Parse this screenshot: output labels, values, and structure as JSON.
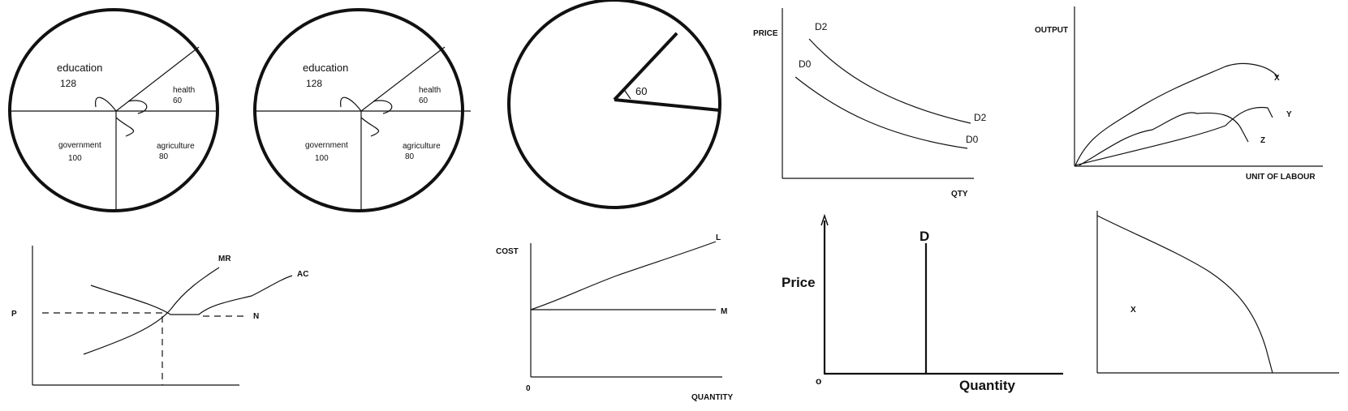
{
  "pie1": {
    "education": "education",
    "education_val": "128",
    "health": "health",
    "health_val": "60",
    "government": "government",
    "government_val": "100",
    "agriculture": "agriculture",
    "agriculture_val": "80"
  },
  "pie2": {
    "education": "education",
    "education_val": "128",
    "health": "health",
    "health_val": "60",
    "government": "government",
    "government_val": "100",
    "agriculture": "agriculture",
    "agriculture_val": "80"
  },
  "pie3": {
    "angle": "60"
  },
  "demand_shift": {
    "ylabel": "PRICE",
    "xlabel": "QTY",
    "d2_top": "D2",
    "d0_top": "D0",
    "d2_end": "D2",
    "d0_end": "D0"
  },
  "labour_output": {
    "ylabel": "OUTPUT",
    "xlabel": "UNIT OF LABOUR",
    "x": "X",
    "y": "Y",
    "z": "Z"
  },
  "cost_curves": {
    "p": "P",
    "mr": "MR",
    "ac": "AC",
    "n": "N"
  },
  "cost_quantity": {
    "ylabel": "COST",
    "xlabel": "QUANTITY",
    "origin": "0",
    "l": "L",
    "m": "M"
  },
  "perfectly_inelastic": {
    "ylabel": "Price",
    "xlabel": "Quantity",
    "origin": "o",
    "d": "D"
  },
  "ppc": {
    "x": "X"
  }
}
